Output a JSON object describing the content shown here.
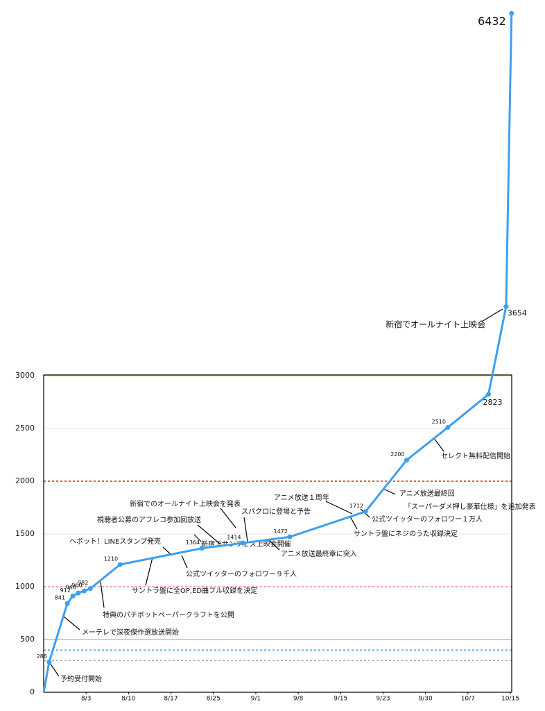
{
  "chart_data": {
    "type": "line",
    "x": [
      0,
      0.9,
      3.9,
      4.8,
      5.7,
      6.7,
      7.7,
      12.6,
      26.1,
      32.9,
      40.6,
      53.1,
      59.9,
      66.7,
      73.4,
      76.3,
      77.2
    ],
    "values": [
      0,
      286,
      841,
      912,
      940,
      960,
      982,
      1210,
      1364,
      1414,
      1472,
      1712,
      2200,
      2510,
      2823,
      3654,
      6432
    ],
    "value_labels": [
      null,
      "286",
      "841",
      "912",
      "940",
      "960",
      "982",
      "1210",
      "1364",
      "1414",
      "1472",
      "1712",
      "2200",
      "2510",
      "2823",
      "3654",
      "6432"
    ],
    "color": "#3d9ff0",
    "xlim": [
      0,
      77
    ],
    "xticks": [
      {
        "value": 7,
        "label": "8/3"
      },
      {
        "value": 14,
        "label": "8/10"
      },
      {
        "value": 21,
        "label": "8/17"
      },
      {
        "value": 28,
        "label": "8/25"
      },
      {
        "value": 35,
        "label": "9/1"
      },
      {
        "value": 42,
        "label": "9/8"
      },
      {
        "value": 49,
        "label": "9/15"
      },
      {
        "value": 56,
        "label": "9/23"
      },
      {
        "value": 63,
        "label": "9/30"
      },
      {
        "value": 70,
        "label": "10/7"
      },
      {
        "value": 77,
        "label": "10/15"
      }
    ],
    "ylim": [
      0,
      3000
    ],
    "yticks": [
      0,
      500,
      1000,
      1500,
      2000,
      2500,
      3000
    ],
    "grid": true,
    "reference_lines": [
      {
        "value": 3000,
        "color": "#f0c400",
        "dash": false
      },
      {
        "value": 2000,
        "color": "#e0201a",
        "dash": true
      },
      {
        "value": 1000,
        "color": "#f08a8a",
        "dash": true
      },
      {
        "value": 500,
        "color": "#f5c518",
        "dash": false
      },
      {
        "value": 400,
        "color": "#3aa0e0",
        "dash": true
      },
      {
        "value": 300,
        "color": "#aaaaaa",
        "dash": true
      }
    ],
    "annotations": [
      "予約受付開始",
      "メーテレで深夜傑作選放送開始",
      "特典のパチボットペーパークラフトを公開",
      "サントラ盤に全OP,ED曲フル収録を決定",
      "ヘボット！LINEスタンプ発売",
      "視聴者公募のアフレコ参加回放送",
      "新宿でのオールナイト上映会を発表",
      "新宿でサンフェス上映会開催",
      "公式ツイッターのフォロワー９千人",
      "スパクロに登場と予告",
      "アニメ放送最終章に突入",
      "アニメ放送１周年",
      "公式ツイッターのフォロワー１万人",
      "サントラ盤にネジのうた収録決定",
      "アニメ放送最終回",
      "「スーパーダメ押し豪華仕様」を追加発表",
      "セレクト無料配信開始",
      "新宿でオールナイト上映会"
    ]
  }
}
